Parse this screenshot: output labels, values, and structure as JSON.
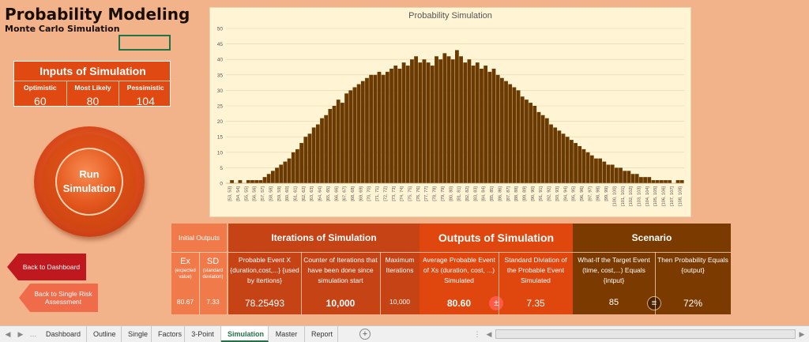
{
  "header": {
    "title": "Probability Modeling",
    "subtitle": "Monte Carlo Simulation"
  },
  "inputs": {
    "title": "Inputs of Simulation",
    "optimistic_label": "Optimistic",
    "optimistic_value": "60",
    "likely_label": "Most Likely",
    "likely_value": "80",
    "pessimistic_label": "Pessimistic",
    "pessimistic_value": "104"
  },
  "run_button": {
    "line1": "Run",
    "line2": "Simulation"
  },
  "nav": {
    "back_dashboard": "Back to Dashboard",
    "back_single": "Back to Single Risk Assessment"
  },
  "chart_data": {
    "type": "bar",
    "title": "Probability Simulation",
    "ylim": [
      0,
      50
    ],
    "yticks": [
      0,
      5,
      10,
      15,
      20,
      25,
      30,
      35,
      40,
      45,
      50
    ],
    "x_range": [
      53,
      109
    ],
    "x_tick_labels": [
      "[53, 53]",
      "[54, 54]",
      "[55, 55]",
      "[56, 56]",
      "[57, 57]",
      "[58, 58]",
      "[59, 59]",
      "[60, 60]",
      "[61, 61]",
      "[62, 62]",
      "[63, 63]",
      "[64, 64]",
      "[65, 65]",
      "[66, 66]",
      "[67, 67]",
      "[68, 68]",
      "[69, 69]",
      "[70, 70]",
      "[71, 71]",
      "[72, 72]",
      "[73, 73]",
      "[74, 74]",
      "[75, 75]",
      "[76, 76]",
      "[77, 77]",
      "[78, 78]",
      "[79, 79]",
      "[80, 80]",
      "[81, 81]",
      "[82, 82]",
      "[83, 83]",
      "[84, 84]",
      "[85, 85]",
      "[86, 86]",
      "[87, 87]",
      "[88, 88]",
      "[89, 89]",
      "[90, 90]",
      "[91, 91]",
      "[92, 92]",
      "[93, 93]",
      "[94, 94]",
      "[95, 95]",
      "[96, 96]",
      "[97, 97]",
      "[98, 98]",
      "[99, 99]",
      "[100, 100]",
      "[101, 101]",
      "[102, 102]",
      "[103, 103]",
      "[104, 104]",
      "[105, 105]",
      "[106, 106]",
      "[107, 107]",
      "[108, 108]"
    ],
    "values": [
      0,
      1,
      0,
      1,
      0,
      1,
      1,
      1,
      1,
      2,
      3,
      4,
      5,
      6,
      7,
      8,
      10,
      11,
      13,
      15,
      16,
      18,
      19,
      21,
      22,
      24,
      25,
      27,
      26,
      29,
      30,
      31,
      32,
      33,
      34,
      35,
      35,
      36,
      35,
      36,
      37,
      38,
      37,
      39,
      38,
      40,
      41,
      39,
      40,
      39,
      38,
      41,
      40,
      42,
      41,
      40,
      43,
      41,
      39,
      40,
      38,
      39,
      37,
      38,
      36,
      37,
      35,
      34,
      33,
      32,
      31,
      30,
      28,
      27,
      26,
      25,
      23,
      22,
      21,
      19,
      18,
      17,
      16,
      15,
      14,
      13,
      12,
      11,
      10,
      9,
      8,
      8,
      7,
      6,
      6,
      5,
      5,
      4,
      4,
      3,
      3,
      2,
      2,
      2,
      1,
      1,
      1,
      1,
      1,
      0,
      1,
      1
    ],
    "bar_color": "#6b3a00",
    "grid": true
  },
  "table": {
    "initial_outputs": "Initial Outputs",
    "ex_label": "Ex",
    "ex_sub": "(expected value)",
    "ex_value": "80.67",
    "sd_label": "SD",
    "sd_sub": "(standard deviation)",
    "sd_value": "7.33",
    "iterations_title": "Iterations of Simulation",
    "probable_event_desc": "Probable Event X {duration,cost,...} {used by itertions}",
    "probable_event_value": "78.25493",
    "counter_desc": "Counter of Iterations that have been done since simulation start",
    "counter_value": "10,000",
    "max_desc": "Maximum Iterations",
    "max_value": "10,000",
    "outputs_title": "Outputs of Simulation",
    "avg_desc": "Average Probable Event of Xs (duration, cost, ...) Simulated",
    "avg_value": "80.60",
    "pm_symbol": "±",
    "sd_desc": "Standard Diviation of the Probable Event Simulated",
    "sd_out_value": "7.35",
    "scenario_title": "Scenario",
    "whatif_desc": "What-If the Target Event (time, cost,...) Equals {intput}",
    "whatif_value": "85",
    "eq_symbol": "≡",
    "prob_desc": "Then Probability Equals {output}",
    "prob_value": "72%"
  },
  "tabs": [
    "Dashboard",
    "Outline",
    "Single",
    "Factors",
    "3-Point",
    "Simulation",
    "Master",
    "Report"
  ],
  "active_tab": "Simulation",
  "colors": {
    "background": "#f2b38a",
    "accent_orange": "#e04a12",
    "brown": "#6b3a00",
    "excel_green": "#217346"
  }
}
